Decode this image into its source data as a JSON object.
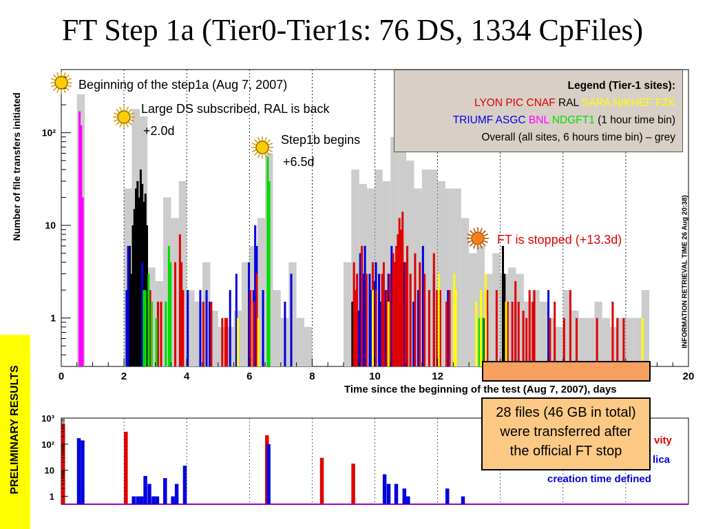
{
  "title": "FT Step 1a (Tier0-Tier1s: 76 DS, 1334 CpFiles)",
  "annotations": {
    "step1a": "Beginning of the step1a (Aug 7, 2007)",
    "large_ds": "Large DS subscribed, RAL is back",
    "large_ds_offset": "+2.0d",
    "step1b": "Step1b begins",
    "step1b_offset": "+6.5d",
    "ft_stopped": "FT is stopped (+13.3d)"
  },
  "legend": {
    "title": "Legend (Tier-1 sites):",
    "row1": [
      {
        "name": "LYON",
        "color": "#e00000"
      },
      {
        "name": "PIC",
        "color": "#e00000"
      },
      {
        "name": "CNAF",
        "color": "#e00000"
      },
      {
        "name": "RAL",
        "color": "#000000"
      },
      {
        "name": "SARA",
        "color": "#ffff00"
      },
      {
        "name": "NIKHEF",
        "color": "#ffff00"
      },
      {
        "name": "FZK",
        "color": "#ffff00"
      }
    ],
    "row2": [
      {
        "name": "TRIUMF",
        "color": "#0000e0"
      },
      {
        "name": "ASGC",
        "color": "#0000e0"
      },
      {
        "name": "BNL",
        "color": "#ff00ff"
      },
      {
        "name": "NDGFT1",
        "color": "#00dd00"
      }
    ],
    "row2_suffix": "(1 hour time bin)",
    "row3": "Overall (all sites, 6 hours time bin) – grey"
  },
  "side_text": "INFORMATION RETRIEVAL TIME 26 Aug 20:38)",
  "prelim": "PRELIMINARY RESULTS",
  "callout": [
    "28 files (46 GB in total)",
    "were transferred after",
    "the official FT stop"
  ],
  "bottom_legend": {
    "line1": "vity",
    "line2": "lica",
    "line3": "creation time defined"
  },
  "chart_data": [
    {
      "type": "bar",
      "ylabel": "Number of file transfers initiated",
      "xlabel": "Time since the beginning of the test (Aug 7, 2007), days",
      "xlim": [
        0,
        20
      ],
      "ylog": true,
      "ylim": [
        0.3,
        480
      ],
      "xticks": [
        0,
        2,
        4,
        6,
        8,
        10,
        12,
        14,
        16,
        18,
        20
      ],
      "yticks": [
        {
          "v": 1,
          "label": "1"
        },
        {
          "v": 10,
          "label": "10"
        },
        {
          "v": 100,
          "label": "10²"
        }
      ],
      "grid_x_dashed": [
        2,
        4,
        6,
        8,
        10,
        12,
        14,
        16,
        18
      ],
      "overall_bin_days": 0.25,
      "overall_grey": [
        {
          "x": 0.5,
          "v": 260
        },
        {
          "x": 2.0,
          "v": 25
        },
        {
          "x": 2.25,
          "v": 180
        },
        {
          "x": 2.5,
          "v": 150
        },
        {
          "x": 2.75,
          "v": 3.5
        },
        {
          "x": 3.0,
          "v": 2.5
        },
        {
          "x": 3.25,
          "v": 20
        },
        {
          "x": 3.5,
          "v": 12
        },
        {
          "x": 3.75,
          "v": 30
        },
        {
          "x": 4.0,
          "v": 2
        },
        {
          "x": 4.25,
          "v": 1.5
        },
        {
          "x": 4.5,
          "v": 4
        },
        {
          "x": 4.75,
          "v": 1.2
        },
        {
          "x": 5.0,
          "v": 0.8
        },
        {
          "x": 5.25,
          "v": 0.8
        },
        {
          "x": 5.5,
          "v": 1.2
        },
        {
          "x": 5.75,
          "v": 4
        },
        {
          "x": 6.0,
          "v": 6
        },
        {
          "x": 6.25,
          "v": 12
        },
        {
          "x": 6.5,
          "v": 60
        },
        {
          "x": 6.75,
          "v": 2
        },
        {
          "x": 7.0,
          "v": 1
        },
        {
          "x": 7.25,
          "v": 4
        },
        {
          "x": 7.5,
          "v": 1
        },
        {
          "x": 7.75,
          "v": 0.8
        },
        {
          "x": 9.0,
          "v": 4
        },
        {
          "x": 9.25,
          "v": 40
        },
        {
          "x": 9.5,
          "v": 28
        },
        {
          "x": 9.75,
          "v": 25
        },
        {
          "x": 10.0,
          "v": 40
        },
        {
          "x": 10.25,
          "v": 30
        },
        {
          "x": 10.5,
          "v": 90
        },
        {
          "x": 10.75,
          "v": 180
        },
        {
          "x": 11.0,
          "v": 50
        },
        {
          "x": 11.25,
          "v": 25
        },
        {
          "x": 11.5,
          "v": 40
        },
        {
          "x": 11.75,
          "v": 40
        },
        {
          "x": 12.0,
          "v": 30
        },
        {
          "x": 12.25,
          "v": 25
        },
        {
          "x": 12.5,
          "v": 25
        },
        {
          "x": 12.75,
          "v": 12
        },
        {
          "x": 13.0,
          "v": 5
        },
        {
          "x": 13.25,
          "v": 6
        },
        {
          "x": 13.5,
          "v": 3
        },
        {
          "x": 13.75,
          "v": 5
        },
        {
          "x": 14.0,
          "v": 3
        },
        {
          "x": 14.25,
          "v": 3.5
        },
        {
          "x": 14.5,
          "v": 3
        },
        {
          "x": 14.75,
          "v": 1.5
        },
        {
          "x": 15.0,
          "v": 2
        },
        {
          "x": 15.25,
          "v": 1.5
        },
        {
          "x": 15.5,
          "v": 1
        },
        {
          "x": 15.75,
          "v": 0.8
        },
        {
          "x": 16.0,
          "v": 2
        },
        {
          "x": 16.25,
          "v": 1.2
        },
        {
          "x": 16.5,
          "v": 1
        },
        {
          "x": 16.75,
          "v": 1
        },
        {
          "x": 17.0,
          "v": 1.5
        },
        {
          "x": 17.25,
          "v": 1
        },
        {
          "x": 17.5,
          "v": 0.8
        },
        {
          "x": 17.75,
          "v": 1
        },
        {
          "x": 18.0,
          "v": 1
        },
        {
          "x": 18.25,
          "v": 1
        },
        {
          "x": 18.5,
          "v": 2
        }
      ],
      "series": [
        {
          "name": "BNL",
          "color": "#ff00ff",
          "points": [
            [
              0.55,
              170
            ],
            [
              0.6,
              120
            ],
            [
              0.65,
              20
            ]
          ]
        },
        {
          "name": "RAL",
          "color": "#000000",
          "points": [
            [
              2.15,
              6
            ],
            [
              2.2,
              3
            ],
            [
              2.25,
              10
            ],
            [
              2.3,
              15
            ],
            [
              2.35,
              25
            ],
            [
              2.4,
              30
            ],
            [
              2.45,
              20
            ],
            [
              2.5,
              40
            ],
            [
              2.55,
              28
            ],
            [
              2.6,
              18
            ],
            [
              2.65,
              22
            ],
            [
              2.7,
              10
            ],
            [
              9.25,
              1.5
            ],
            [
              14.05,
              6
            ],
            [
              14.1,
              3
            ]
          ]
        },
        {
          "name": "TRIUMF/ASGC",
          "color": "#0000e0",
          "points": [
            [
              2.05,
              2
            ],
            [
              2.1,
              6
            ],
            [
              2.55,
              4
            ],
            [
              2.75,
              1.5
            ],
            [
              4.0,
              2
            ],
            [
              4.4,
              2
            ],
            [
              4.6,
              2
            ],
            [
              4.7,
              1.5
            ],
            [
              5.35,
              2
            ],
            [
              5.55,
              3
            ],
            [
              5.95,
              4
            ],
            [
              6.1,
              2
            ],
            [
              6.15,
              10
            ],
            [
              6.2,
              6
            ],
            [
              6.4,
              2
            ],
            [
              7.1,
              1.5
            ],
            [
              7.3,
              3
            ],
            [
              9.45,
              1.2
            ],
            [
              9.5,
              5
            ],
            [
              9.6,
              3
            ],
            [
              9.65,
              6
            ],
            [
              9.8,
              3
            ],
            [
              9.85,
              2
            ],
            [
              9.95,
              2.5
            ],
            [
              10.0,
              4
            ],
            [
              10.1,
              3
            ],
            [
              10.15,
              1.5
            ],
            [
              10.3,
              2
            ],
            [
              10.4,
              3
            ],
            [
              10.5,
              6
            ],
            [
              10.55,
              2
            ],
            [
              10.8,
              2
            ],
            [
              10.9,
              4
            ],
            [
              11.1,
              3
            ],
            [
              11.2,
              1.5
            ],
            [
              11.35,
              2
            ],
            [
              11.5,
              6
            ],
            [
              11.7,
              2
            ],
            [
              11.85,
              3
            ],
            [
              12.0,
              1.5
            ],
            [
              12.3,
              2
            ],
            [
              13.45,
              1
            ],
            [
              13.55,
              1.2
            ],
            [
              14.45,
              1.5
            ],
            [
              15.5,
              2
            ]
          ]
        },
        {
          "name": "LYON/PIC/CNAF",
          "color": "#e00000",
          "points": [
            [
              2.8,
              2
            ],
            [
              3.05,
              1.5
            ],
            [
              3.15,
              1.5
            ],
            [
              3.6,
              4
            ],
            [
              3.75,
              8
            ],
            [
              3.8,
              4
            ],
            [
              3.85,
              2
            ],
            [
              4.5,
              1.5
            ],
            [
              4.75,
              1.5
            ],
            [
              5.1,
              1
            ],
            [
              5.2,
              1
            ],
            [
              5.25,
              1
            ],
            [
              6.0,
              2
            ],
            [
              6.1,
              1.5
            ],
            [
              6.2,
              3
            ],
            [
              9.3,
              4
            ],
            [
              9.35,
              2
            ],
            [
              9.4,
              3
            ],
            [
              9.55,
              6
            ],
            [
              9.7,
              3
            ],
            [
              9.9,
              4
            ],
            [
              10.0,
              2
            ],
            [
              10.2,
              3
            ],
            [
              10.25,
              4
            ],
            [
              10.35,
              2
            ],
            [
              10.45,
              3
            ],
            [
              10.55,
              5
            ],
            [
              10.6,
              4
            ],
            [
              10.65,
              6
            ],
            [
              10.7,
              8
            ],
            [
              10.75,
              12
            ],
            [
              10.8,
              9
            ],
            [
              10.85,
              14
            ],
            [
              10.95,
              4
            ],
            [
              11.0,
              6
            ],
            [
              11.1,
              3
            ],
            [
              11.25,
              5
            ],
            [
              11.4,
              4
            ],
            [
              11.55,
              3
            ],
            [
              11.7,
              2
            ],
            [
              11.85,
              5
            ],
            [
              11.95,
              2
            ],
            [
              12.05,
              2
            ],
            [
              12.25,
              1.5
            ],
            [
              12.35,
              2
            ],
            [
              13.55,
              2
            ],
            [
              13.85,
              2
            ],
            [
              14.2,
              1.5
            ],
            [
              14.35,
              1.5
            ],
            [
              14.45,
              2.5
            ],
            [
              14.55,
              1.5
            ],
            [
              14.7,
              1.2
            ],
            [
              14.8,
              1
            ],
            [
              14.9,
              2
            ],
            [
              15.0,
              1.5
            ],
            [
              15.05,
              2
            ],
            [
              15.55,
              1
            ],
            [
              15.7,
              1.5
            ],
            [
              16.0,
              1
            ],
            [
              16.2,
              2
            ],
            [
              16.4,
              1
            ],
            [
              17.05,
              1
            ],
            [
              17.55,
              1.5
            ],
            [
              17.7,
              1
            ],
            [
              17.9,
              1
            ]
          ]
        },
        {
          "name": "NDGFT1",
          "color": "#00dd00",
          "points": [
            [
              2.6,
              2
            ],
            [
              2.65,
              2
            ],
            [
              2.75,
              3
            ],
            [
              2.85,
              1.5
            ],
            [
              3.0,
              1
            ],
            [
              3.3,
              1.5
            ],
            [
              3.4,
              6
            ],
            [
              3.45,
              4
            ],
            [
              6.55,
              55
            ],
            [
              6.6,
              30
            ],
            [
              13.3,
              1
            ],
            [
              13.4,
              1
            ]
          ]
        },
        {
          "name": "SARA/NIKHEF/FZK",
          "color": "#ffff00",
          "points": [
            [
              5.6,
              1
            ],
            [
              6.25,
              1
            ],
            [
              9.9,
              2
            ],
            [
              10.4,
              1.5
            ],
            [
              12.0,
              3
            ],
            [
              12.5,
              3
            ],
            [
              12.55,
              2
            ],
            [
              13.2,
              1.5
            ],
            [
              13.35,
              2
            ],
            [
              13.5,
              3
            ],
            [
              14.15,
              1.5
            ],
            [
              18.5,
              1
            ]
          ]
        }
      ]
    },
    {
      "type": "bar",
      "ylog": true,
      "ylim": [
        0.5,
        1000
      ],
      "yticks": [
        {
          "v": 1,
          "label": "1"
        },
        {
          "v": 10,
          "label": "10"
        },
        {
          "v": 100,
          "label": "10²"
        },
        {
          "v": 1000,
          "label": "10³"
        }
      ],
      "bars": [
        {
          "x": 0.0,
          "v": 600,
          "color": "#e00000"
        },
        {
          "x": 0.5,
          "v": 170,
          "color": "#0000e0"
        },
        {
          "x": 0.62,
          "v": 140,
          "color": "#0000e0"
        },
        {
          "x": 2.0,
          "v": 300,
          "color": "#e00000"
        },
        {
          "x": 2.25,
          "v": 1,
          "color": "#0000e0"
        },
        {
          "x": 2.38,
          "v": 1,
          "color": "#0000e0"
        },
        {
          "x": 2.5,
          "v": 1,
          "color": "#0000e0"
        },
        {
          "x": 2.62,
          "v": 6,
          "color": "#0000e0"
        },
        {
          "x": 2.75,
          "v": 3,
          "color": "#0000e0"
        },
        {
          "x": 2.88,
          "v": 1,
          "color": "#0000e0"
        },
        {
          "x": 3.0,
          "v": 1,
          "color": "#0000e0"
        },
        {
          "x": 3.25,
          "v": 5,
          "color": "#0000e0"
        },
        {
          "x": 3.5,
          "v": 1,
          "color": "#0000e0"
        },
        {
          "x": 3.62,
          "v": 3,
          "color": "#0000e0"
        },
        {
          "x": 3.88,
          "v": 15,
          "color": "#0000e0"
        },
        {
          "x": 6.5,
          "v": 220,
          "color": "#e00000"
        },
        {
          "x": 6.55,
          "v": 100,
          "color": "#0000e0"
        },
        {
          "x": 8.25,
          "v": 30,
          "color": "#e00000"
        },
        {
          "x": 9.25,
          "v": 18,
          "color": "#e00000"
        },
        {
          "x": 10.25,
          "v": 7,
          "color": "#0000e0"
        },
        {
          "x": 10.38,
          "v": 3,
          "color": "#0000e0"
        },
        {
          "x": 10.62,
          "v": 3,
          "color": "#0000e0"
        },
        {
          "x": 10.88,
          "v": 2,
          "color": "#0000e0"
        },
        {
          "x": 11.0,
          "v": 1,
          "color": "#0000e0"
        },
        {
          "x": 12.25,
          "v": 2,
          "color": "#0000e0"
        },
        {
          "x": 12.75,
          "v": 1,
          "color": "#0000e0"
        }
      ]
    }
  ]
}
